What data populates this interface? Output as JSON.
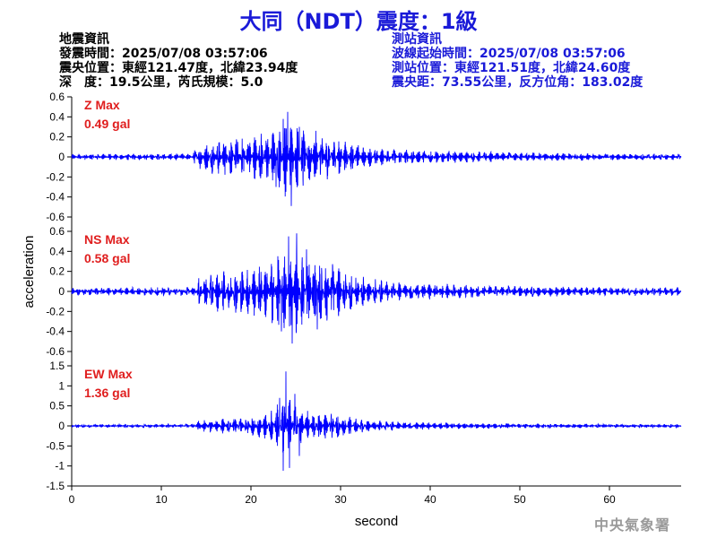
{
  "title": "大同（NDT）震度：1級",
  "event_info": {
    "heading": "地震資訊",
    "origin_time": "發震時間：2025/07/08 03:57:06",
    "epicenter": "震央位置：東經121.47度，北緯23.94度",
    "depth_magnitude": "深　度：19.5公里，芮氏規模：5.0"
  },
  "station_info": {
    "heading": "測站資訊",
    "wave_start": "波線起始時間：2025/07/08 03:57:06",
    "location": "測站位置：東經121.51度，北緯24.60度",
    "distance": "震央距：73.55公里，反方位角：183.02度"
  },
  "footer": {
    "agency": "中央氣象署"
  },
  "colors": {
    "trace": "#0000ff",
    "max_label": "#e01e1e",
    "title": "#1a1ad8",
    "station_info": "#1a1ad8"
  },
  "chart_data": {
    "type": "line",
    "xlabel": "second",
    "ylabel": "acceleration",
    "xlim": [
      0,
      68
    ],
    "x_ticks": [
      0,
      10,
      20,
      30,
      40,
      50,
      60
    ],
    "x_tick_labels": [
      "0",
      "10",
      "20",
      "30",
      "40",
      "50",
      "60"
    ],
    "panels": [
      {
        "name": "Z",
        "label_name": "Z Max",
        "label_value": "0.49 gal",
        "max_gal": 0.49,
        "ylim": [
          -0.6,
          0.6
        ],
        "y_ticks": [
          0.6,
          0.4,
          0.2,
          0,
          -0.2,
          -0.4,
          -0.6
        ],
        "y_tick_labels": [
          "0.6",
          "0.4",
          "0.2",
          "0",
          "-0.2",
          "-0.4",
          "-0.6"
        ],
        "envelope": [
          [
            0,
            0.03
          ],
          [
            13.5,
            0.035
          ],
          [
            14,
            0.12
          ],
          [
            16,
            0.18
          ],
          [
            18,
            0.2
          ],
          [
            20,
            0.22
          ],
          [
            22,
            0.28
          ],
          [
            23,
            0.3
          ],
          [
            24,
            0.42
          ],
          [
            25,
            0.33
          ],
          [
            27,
            0.28
          ],
          [
            29,
            0.22
          ],
          [
            31,
            0.15
          ],
          [
            33,
            0.1
          ],
          [
            36,
            0.08
          ],
          [
            40,
            0.07
          ],
          [
            45,
            0.055
          ],
          [
            50,
            0.045
          ],
          [
            60,
            0.035
          ],
          [
            68,
            0.03
          ]
        ],
        "peaks": [
          [
            24.1,
            0.45
          ],
          [
            24.5,
            -0.49
          ],
          [
            23.6,
            0.38
          ],
          [
            22.8,
            -0.3
          ],
          [
            25.4,
            0.3
          ]
        ]
      },
      {
        "name": "NS",
        "label_name": "NS Max",
        "label_value": "0.58 gal",
        "max_gal": 0.58,
        "ylim": [
          -0.6,
          0.6
        ],
        "y_ticks": [
          0.6,
          0.4,
          0.2,
          0,
          -0.2,
          -0.4,
          -0.6
        ],
        "y_tick_labels": [
          "0.6",
          "0.4",
          "0.2",
          "0",
          "-0.2",
          "-0.4",
          "-0.6"
        ],
        "envelope": [
          [
            0,
            0.04
          ],
          [
            13.8,
            0.045
          ],
          [
            14.2,
            0.15
          ],
          [
            16,
            0.2
          ],
          [
            18,
            0.22
          ],
          [
            20,
            0.25
          ],
          [
            22,
            0.32
          ],
          [
            23,
            0.36
          ],
          [
            24,
            0.45
          ],
          [
            25,
            0.42
          ],
          [
            27,
            0.35
          ],
          [
            29,
            0.3
          ],
          [
            31,
            0.2
          ],
          [
            33,
            0.14
          ],
          [
            36,
            0.1
          ],
          [
            40,
            0.08
          ],
          [
            45,
            0.065
          ],
          [
            50,
            0.055
          ],
          [
            60,
            0.045
          ],
          [
            68,
            0.045
          ]
        ],
        "peaks": [
          [
            24.2,
            0.55
          ],
          [
            24.6,
            -0.52
          ],
          [
            25.1,
            0.58
          ],
          [
            23.4,
            -0.4
          ],
          [
            26.2,
            0.42
          ],
          [
            27.4,
            -0.38
          ]
        ]
      },
      {
        "name": "EW",
        "label_name": "EW Max",
        "label_value": "1.36 gal",
        "max_gal": 1.36,
        "ylim": [
          -1.5,
          1.5
        ],
        "y_ticks": [
          1.5,
          1,
          0.5,
          0,
          -0.5,
          -1,
          -1.5
        ],
        "y_tick_labels": [
          "1.5",
          "1",
          "0.5",
          "0",
          "-0.5",
          "-1",
          "-1.5"
        ],
        "envelope": [
          [
            0,
            0.04
          ],
          [
            13.8,
            0.05
          ],
          [
            14.2,
            0.15
          ],
          [
            16,
            0.18
          ],
          [
            18,
            0.2
          ],
          [
            20,
            0.25
          ],
          [
            22,
            0.35
          ],
          [
            23,
            0.55
          ],
          [
            24,
            0.9
          ],
          [
            25,
            0.55
          ],
          [
            26,
            0.4
          ],
          [
            28,
            0.35
          ],
          [
            30,
            0.28
          ],
          [
            32,
            0.18
          ],
          [
            35,
            0.12
          ],
          [
            40,
            0.09
          ],
          [
            45,
            0.07
          ],
          [
            50,
            0.06
          ],
          [
            60,
            0.05
          ],
          [
            68,
            0.045
          ]
        ],
        "peaks": [
          [
            23.9,
            1.36
          ],
          [
            23.6,
            -1.12
          ],
          [
            24.3,
            -1.05
          ],
          [
            24.9,
            0.8
          ],
          [
            23.2,
            0.7
          ],
          [
            25.4,
            -0.75
          ]
        ]
      }
    ]
  }
}
